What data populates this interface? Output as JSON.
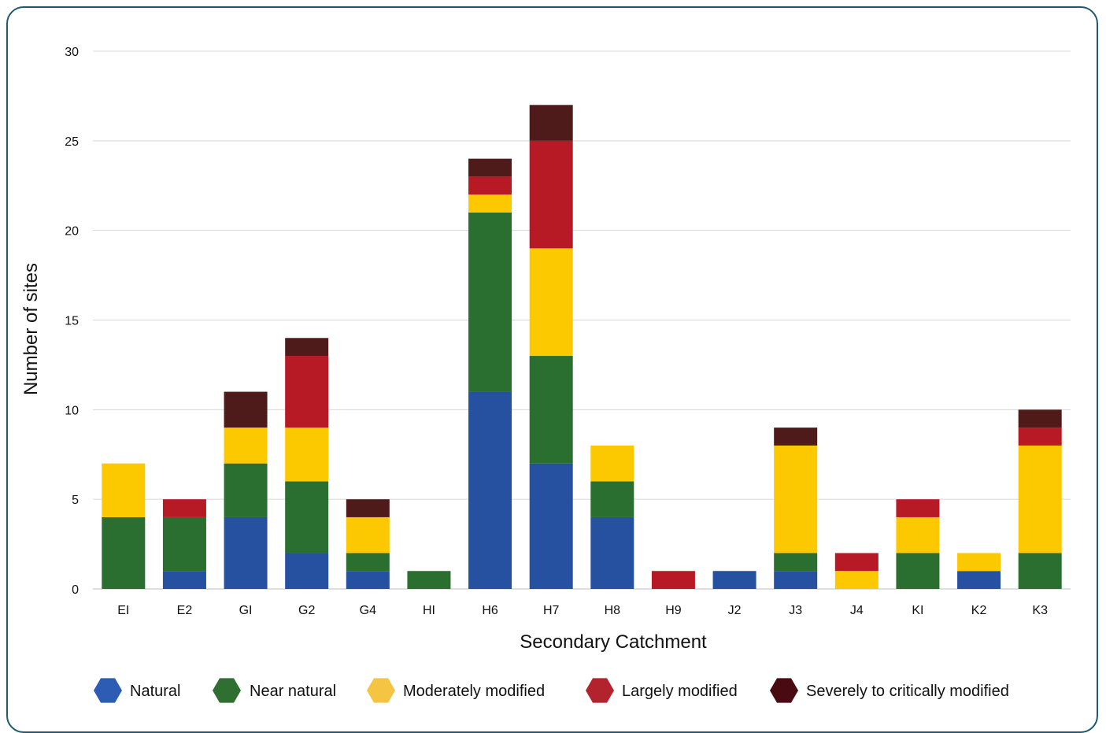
{
  "chart_data": {
    "type": "bar",
    "stacked": true,
    "title": "",
    "xlabel": "Secondary Catchment",
    "ylabel": "Number of sites",
    "ylim": [
      0,
      30
    ],
    "yticks": [
      0,
      5,
      10,
      15,
      20,
      25,
      30
    ],
    "grid": true,
    "legend_position": "bottom",
    "categories": [
      "EI",
      "E2",
      "GI",
      "G2",
      "G4",
      "HI",
      "H6",
      "H7",
      "H8",
      "H9",
      "J2",
      "J3",
      "J4",
      "KI",
      "K2",
      "K3"
    ],
    "series": [
      {
        "name": "Natural",
        "color": "#2650a0",
        "values": [
          0,
          1,
          4,
          2,
          1,
          0,
          11,
          7,
          4,
          0,
          1,
          1,
          0,
          0,
          1,
          0
        ]
      },
      {
        "name": "Near natural",
        "color": "#2a6e30",
        "values": [
          4,
          3,
          3,
          4,
          1,
          1,
          10,
          6,
          2,
          0,
          0,
          1,
          0,
          2,
          0,
          2
        ]
      },
      {
        "name": "Moderately modified",
        "color": "#fcc800",
        "values": [
          3,
          0,
          2,
          3,
          2,
          0,
          1,
          6,
          2,
          0,
          0,
          6,
          1,
          2,
          1,
          6
        ]
      },
      {
        "name": "Largely modified",
        "color": "#b71a25",
        "values": [
          0,
          1,
          0,
          4,
          0,
          0,
          1,
          6,
          0,
          1,
          0,
          0,
          1,
          1,
          0,
          1
        ]
      },
      {
        "name": "Severely to critically modified",
        "color": "#4f1a1a",
        "values": [
          0,
          0,
          2,
          1,
          1,
          0,
          1,
          2,
          0,
          0,
          0,
          1,
          0,
          0,
          0,
          1
        ]
      }
    ],
    "legend_icon_colors": [
      "#2c5cb4",
      "#2f7032",
      "#f5c542",
      "#b2232d",
      "#4a0a12"
    ]
  }
}
